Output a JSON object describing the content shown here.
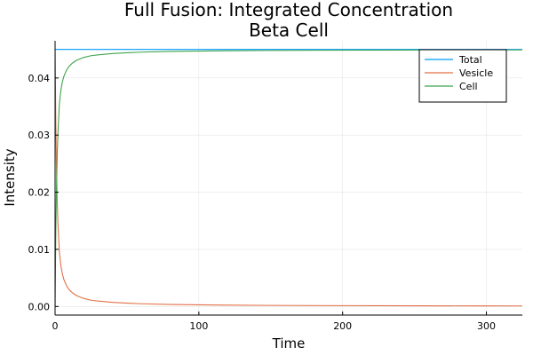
{
  "chart_data": {
    "type": "line",
    "title_lines": [
      "Full Fusion: Integrated Concentration",
      "Beta Cell"
    ],
    "xlabel": "Time",
    "ylabel": "Intensity",
    "xlim": [
      0,
      325
    ],
    "ylim": [
      -0.0015,
      0.0465
    ],
    "xticks": [
      0,
      100,
      200,
      300
    ],
    "xtick_labels": [
      "0",
      "100",
      "200",
      "300"
    ],
    "yticks": [
      0.0,
      0.01,
      0.02,
      0.03,
      0.04
    ],
    "ytick_labels": [
      "0.00",
      "0.01",
      "0.02",
      "0.03",
      "0.04"
    ],
    "grid": true,
    "legend_position": "top-right",
    "series": [
      {
        "name": "Total",
        "color": "#009AFA",
        "x": [
          0,
          325
        ],
        "y": [
          0.045,
          0.045
        ]
      },
      {
        "name": "Vesicle",
        "color": "#E26F46",
        "x": [
          0,
          0.5,
          1,
          1.5,
          2,
          3,
          4,
          5,
          6,
          8,
          10,
          12,
          15,
          20,
          25,
          30,
          40,
          50,
          60,
          80,
          100,
          120,
          150,
          175,
          200,
          250,
          300,
          325
        ],
        "y": [
          0.045,
          0.032,
          0.024,
          0.0185,
          0.0145,
          0.0095,
          0.0072,
          0.0058,
          0.0048,
          0.0036,
          0.0029,
          0.0024,
          0.0019,
          0.0014,
          0.0011,
          0.00095,
          0.00072,
          0.00058,
          0.00048,
          0.00036,
          0.00029,
          0.00024,
          0.00019,
          0.00017,
          0.00015,
          0.00012,
          0.0001,
          9e-05
        ]
      },
      {
        "name": "Cell",
        "color": "#3EA44E",
        "x": [
          0,
          0.5,
          1,
          1.5,
          2,
          3,
          4,
          5,
          6,
          8,
          10,
          12,
          15,
          20,
          25,
          30,
          40,
          50,
          60,
          80,
          100,
          120,
          150,
          175,
          200,
          250,
          300,
          325
        ],
        "y": [
          0.0,
          0.013,
          0.021,
          0.0265,
          0.0305,
          0.0355,
          0.0378,
          0.0392,
          0.0402,
          0.0414,
          0.0421,
          0.0426,
          0.0431,
          0.0436,
          0.0439,
          0.04405,
          0.04428,
          0.04442,
          0.04452,
          0.04464,
          0.04471,
          0.04476,
          0.04481,
          0.04483,
          0.04485,
          0.04488,
          0.0449,
          0.04491
        ]
      }
    ]
  }
}
